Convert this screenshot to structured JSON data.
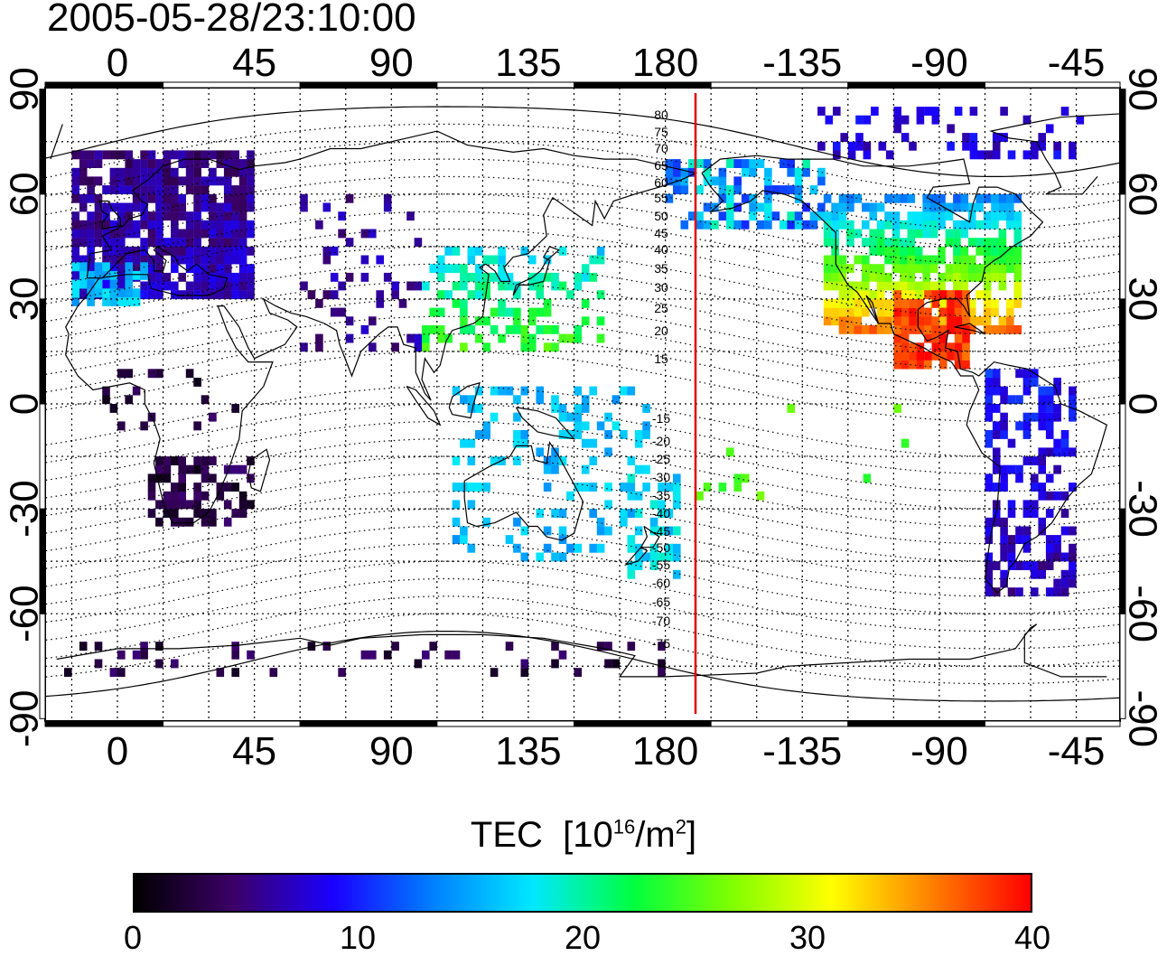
{
  "title": "2005-05-28/23:10:00",
  "map": {
    "projection": "equirectangular",
    "central_longitude": 135,
    "lon_tick_labels": [
      "0",
      "45",
      "90",
      "135",
      "180",
      "-135",
      "-90",
      "-45"
    ],
    "lat_tick_labels": [
      "90",
      "60",
      "30",
      "0",
      "-30",
      "-60",
      "-90"
    ],
    "magnetic_latitude_labels": [
      "80",
      "75",
      "70",
      "65",
      "60",
      "55",
      "50",
      "45",
      "40",
      "35",
      "30",
      "25",
      "20",
      "15",
      "-15",
      "-20",
      "-25",
      "-30",
      "-35",
      "-40",
      "-45",
      "-50",
      "-55",
      "-60",
      "-65",
      "-70",
      "-75"
    ],
    "reference_meridian_color": "#e00000",
    "gridlines": true
  },
  "colorbar": {
    "label": "TEC",
    "unit_base": "[10",
    "unit_exp": "16",
    "unit_mid": "/m",
    "unit_exp2": "2",
    "unit_end": "]",
    "min": 0,
    "max": 40,
    "tick_labels": [
      "0",
      "10",
      "20",
      "30",
      "40"
    ],
    "colormap": [
      "#000000",
      "#3c0068",
      "#1a00ff",
      "#0080ff",
      "#00e8ff",
      "#00ff40",
      "#80ff00",
      "#ffff00",
      "#ff8000",
      "#ff0000"
    ]
  }
}
